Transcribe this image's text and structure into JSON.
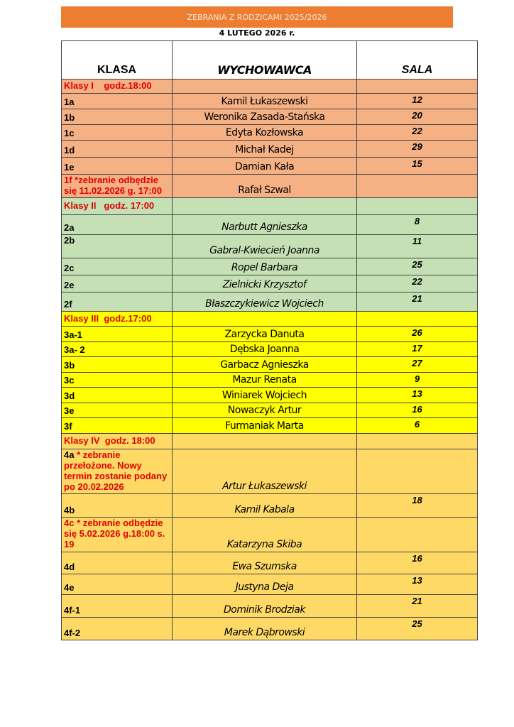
{
  "title": "ZEBRANIA Z RODZICAMI 2025/2026",
  "date": "4 LUTEGO 2026 r.",
  "colors": {
    "banner": "#ed7d31",
    "klasy_i": "#f5b084",
    "klasy_ii": "#c5e0b4",
    "klasy_iii": "#ffff00",
    "klasy_iv": "#ffd966",
    "note": "#e00000"
  },
  "headers": {
    "klasa": "KLASA",
    "wychowawca": "WYCHOWAWCA",
    "sala": "SALA"
  },
  "sections": [
    {
      "label": "Klasy I    godz.18:00",
      "color": "#f5b084",
      "italic": false,
      "rows": [
        {
          "klasa": "1a",
          "wychowawca": "Kamil Łukaszewski",
          "sala": "12"
        },
        {
          "klasa": "1b",
          "wychowawca": "Weronika Zasada-Stańska",
          "sala": "20"
        },
        {
          "klasa": "1c",
          "wychowawca": "Edyta Kozłowska",
          "sala": "22"
        },
        {
          "klasa": "1d",
          "wychowawca": "Michał Kadej",
          "sala": "29"
        },
        {
          "klasa": "1e",
          "wychowawca": "Damian Kała",
          "sala": "15"
        },
        {
          "klasa": "",
          "note": "1f *zebranie odbędzie się 11.02.2026 g. 17:00",
          "wychowawca": "Rafał Szwal",
          "sala": ""
        }
      ]
    },
    {
      "label": "Klasy II   godz. 17:00",
      "color": "#c5e0b4",
      "italic": true,
      "rows": [
        {
          "klasa": "2a",
          "wychowawca": "Narbutt Agnieszka",
          "sala": "8"
        },
        {
          "klasa": "2b",
          "wychowawca": "Gabral-Kwiecień Joanna",
          "sala": "11",
          "top": true
        },
        {
          "klasa": "2c",
          "wychowawca": "Ropel Barbara",
          "sala": "25"
        },
        {
          "klasa": "2e",
          "wychowawca": "Zielnicki Krzysztof",
          "sala": "22"
        },
        {
          "klasa": "2f",
          "wychowawca": "Błaszczykiewicz Wojciech",
          "sala": "21"
        }
      ]
    },
    {
      "label": "Klasy III  godz.17:00",
      "color": "#ffff00",
      "italic": false,
      "rows": [
        {
          "klasa": "3a-1",
          "wychowawca": "Zarzycka Danuta",
          "sala": "26"
        },
        {
          "klasa": "3a- 2",
          "wychowawca": "Dębska Joanna",
          "sala": "17"
        },
        {
          "klasa": "3b",
          "wychowawca": "Garbacz Agnieszka",
          "sala": "27"
        },
        {
          "klasa": "3c",
          "wychowawca": "Mazur Renata",
          "sala": "9"
        },
        {
          "klasa": "3d",
          "wychowawca": "Winiarek Wojciech",
          "sala": "13"
        },
        {
          "klasa": "3e",
          "wychowawca": "Nowaczyk Artur",
          "sala": "16"
        },
        {
          "klasa": "3f",
          "wychowawca": "Furmaniak Marta",
          "sala": "6"
        }
      ]
    },
    {
      "label": "Klasy IV  godz. 18:00",
      "color": "#ffd966",
      "italic": true,
      "rows": [
        {
          "klasa": "4a",
          "note": " * zebranie przełożone. Nowy termin zostanie podany po 20.02.2026",
          "wychowawca": "Artur Łukaszewski",
          "sala": ""
        },
        {
          "klasa": "4b",
          "wychowawca": "Kamil Kabala",
          "sala": "18"
        },
        {
          "klasa": "",
          "note": "4c  * zebranie odbędzie się 5.02.2026 g.18:00 s. 19",
          "wychowawca": "Katarzyna Skiba",
          "sala": ""
        },
        {
          "klasa": "4d",
          "wychowawca": "Ewa Szumska",
          "sala": "16"
        },
        {
          "klasa": "4e",
          "wychowawca": "Justyna Deja",
          "sala": "13"
        },
        {
          "klasa": "4f-1",
          "wychowawca": "Dominik Brodziak",
          "sala": "21"
        },
        {
          "klasa": "4f-2",
          "wychowawca": "Marek Dąbrowski",
          "sala": "25"
        }
      ]
    }
  ]
}
